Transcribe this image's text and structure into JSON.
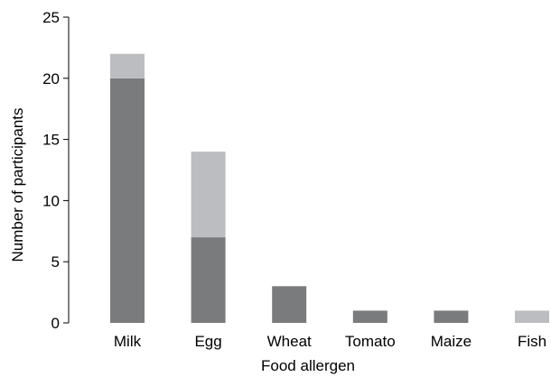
{
  "chart_data": {
    "type": "bar",
    "stacked": true,
    "title": "",
    "xlabel": "Food allergen",
    "ylabel": "Number of participants",
    "ylim": [
      0,
      25
    ],
    "yticks": [
      0,
      5,
      10,
      15,
      20,
      25
    ],
    "grid": false,
    "legend": "none",
    "categories": [
      "Milk",
      "Egg",
      "Wheat",
      "Tomato",
      "Maize",
      "Fish"
    ],
    "series": [
      {
        "color": "#7a7b7d",
        "values": [
          20,
          7,
          3,
          1,
          1,
          0
        ]
      },
      {
        "color": "#bcbdc0",
        "values": [
          2,
          7,
          0,
          0,
          0,
          1
        ]
      }
    ]
  }
}
